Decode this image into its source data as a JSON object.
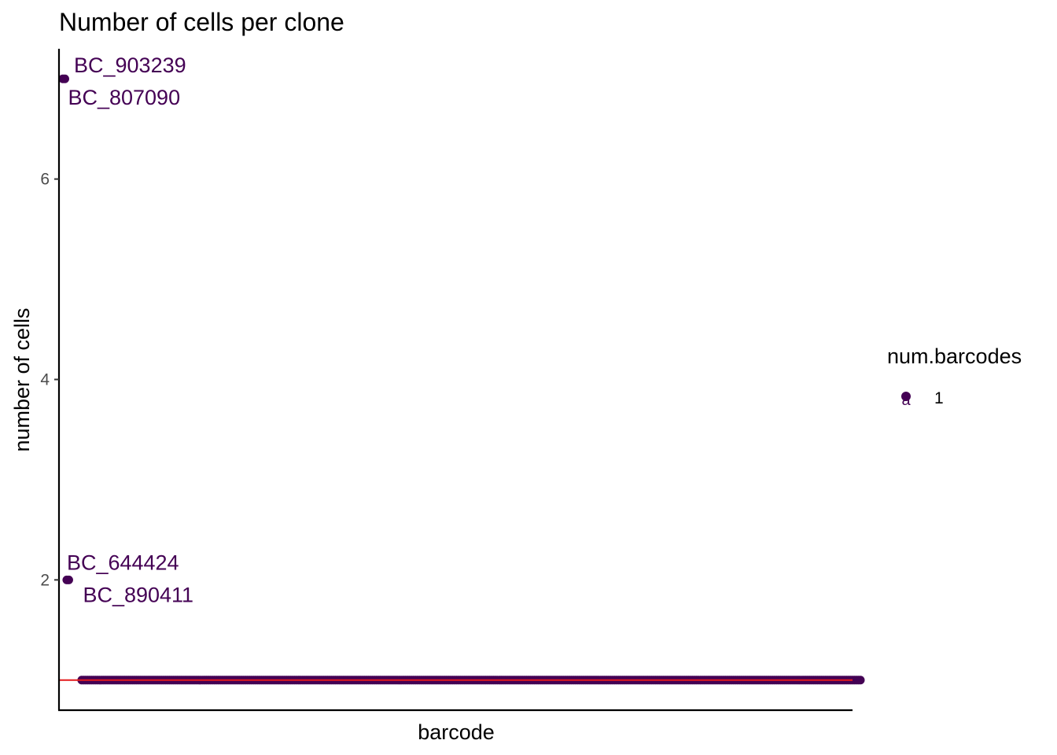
{
  "chart_data": {
    "type": "scatter",
    "title": "Number of cells per clone",
    "xlabel": "barcode",
    "ylabel": "number of cells",
    "x_ticks": "none",
    "y_ticks": [
      2,
      4,
      6
    ],
    "ylim": [
      0.7,
      7.3
    ],
    "grid": false,
    "legend": {
      "title": "num.barcodes",
      "position": "right",
      "entries": [
        {
          "label": "1",
          "color": "#440154"
        }
      ]
    },
    "reference_line": {
      "y": 1,
      "color": "#e31a1c"
    },
    "point_color": "#440154",
    "points": [
      {
        "rank": 1,
        "y": 7,
        "label": "BC_903239"
      },
      {
        "rank": 2,
        "y": 7,
        "label": "BC_807090"
      },
      {
        "rank": 3,
        "y": 2,
        "label": "BC_644424"
      },
      {
        "rank": 4,
        "y": 2,
        "label": "BC_890411"
      }
    ],
    "singleton_clones": {
      "y": 1,
      "count": 400,
      "first_rank": 5
    }
  }
}
